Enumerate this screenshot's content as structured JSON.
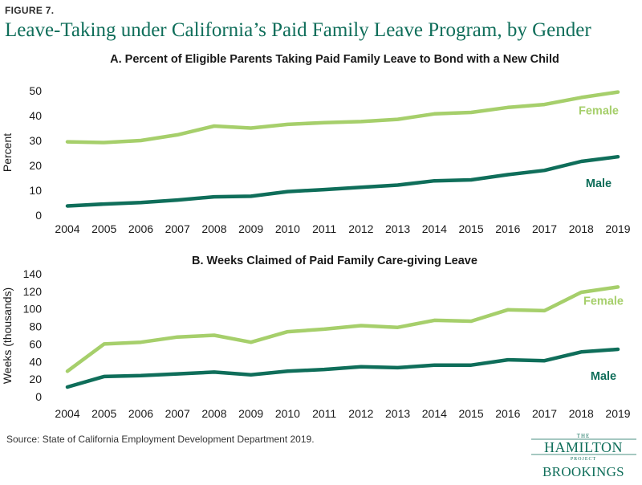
{
  "figure_label": "FIGURE 7.",
  "title": "Leave-Taking under California’s Paid Family Leave Program, by Gender",
  "source": "Source:  State of California Employment Development Department 2019.",
  "logo": {
    "the": "THE",
    "hamilton": "HAMILTON",
    "project": "PROJECT",
    "brookings": "BROOKINGS"
  },
  "colors": {
    "female": "#a6cf6b",
    "male": "#0f6e5a",
    "title": "#0f6e5a"
  },
  "chart_data": [
    {
      "type": "line",
      "title": "A. Percent of Eligible Parents Taking Paid Family Leave to Bond with a New Child",
      "xlabel": "",
      "ylabel": "Percent",
      "ylim": [
        0,
        50
      ],
      "yticks": [
        0,
        10,
        20,
        30,
        40,
        50
      ],
      "x": [
        "2004",
        "2005",
        "2006",
        "2007",
        "2008",
        "2009",
        "2010",
        "2011",
        "2012",
        "2013",
        "2014",
        "2015",
        "2016",
        "2017",
        "2018",
        "2019"
      ],
      "series": [
        {
          "name": "Female",
          "values": [
            29.5,
            29.2,
            30.0,
            32.3,
            35.8,
            35.0,
            36.5,
            37.2,
            37.6,
            38.5,
            40.7,
            41.3,
            43.3,
            44.5,
            47.3,
            49.5
          ]
        },
        {
          "name": "Male",
          "values": [
            3.7,
            4.5,
            5.1,
            6.1,
            7.4,
            7.6,
            9.5,
            10.3,
            11.2,
            12.1,
            13.8,
            14.2,
            16.3,
            18.0,
            21.6,
            23.5
          ]
        }
      ],
      "grid": false,
      "legend": "inline-right"
    },
    {
      "type": "line",
      "title": "B. Weeks Claimed of Paid Family Care-giving Leave",
      "xlabel": "",
      "ylabel": "Weeks (thousands)",
      "ylim": [
        0,
        140
      ],
      "yticks": [
        0,
        20,
        40,
        60,
        80,
        100,
        120,
        140
      ],
      "x": [
        "2004",
        "2005",
        "2006",
        "2007",
        "2008",
        "2009",
        "2010",
        "2011",
        "2012",
        "2013",
        "2014",
        "2015",
        "2016",
        "2017",
        "2018",
        "2019"
      ],
      "series": [
        {
          "name": "Female",
          "values": [
            29,
            60,
            62,
            68,
            70,
            62,
            74,
            77,
            81,
            79,
            87,
            86,
            99,
            98,
            119,
            125
          ]
        },
        {
          "name": "Male",
          "values": [
            11,
            23,
            24,
            26,
            28,
            25,
            29,
            31,
            34,
            33,
            36,
            36,
            42,
            41,
            51,
            54
          ]
        }
      ],
      "grid": false,
      "legend": "inline-right"
    }
  ]
}
